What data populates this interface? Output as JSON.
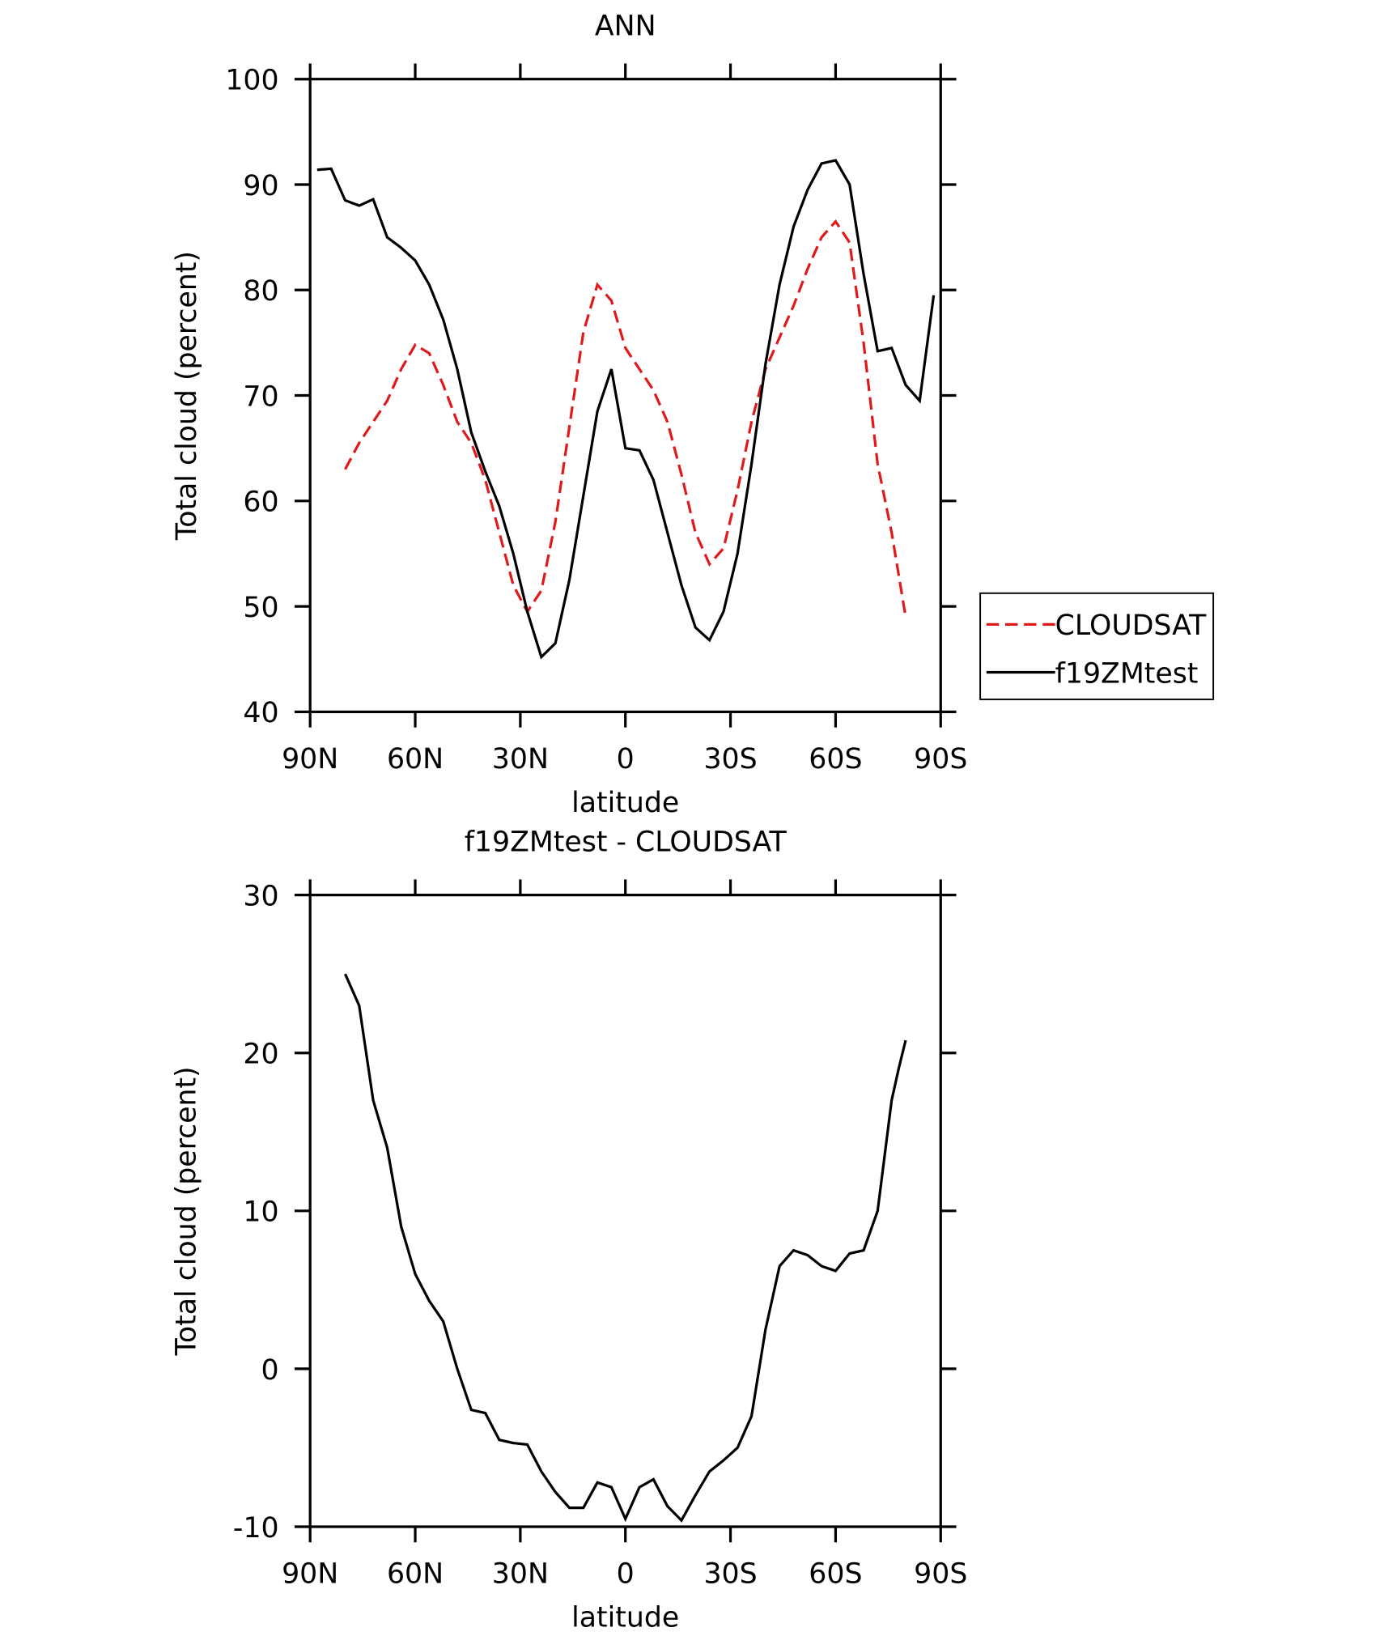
{
  "chart_data": [
    {
      "type": "line",
      "title": "ANN",
      "xlabel": "latitude",
      "ylabel": "Total cloud (percent)",
      "xlim": [
        90,
        -90
      ],
      "ylim": [
        40,
        100
      ],
      "xticks": [
        {
          "value": 90,
          "label": "90N"
        },
        {
          "value": 60,
          "label": "60N"
        },
        {
          "value": 30,
          "label": "30N"
        },
        0,
        {
          "value": -30,
          "label": "30S"
        },
        {
          "value": -60,
          "label": "60S"
        },
        {
          "value": -90,
          "label": "90S"
        }
      ],
      "yticks": [
        40,
        50,
        60,
        70,
        80,
        90,
        100
      ],
      "legend": "right",
      "series": [
        {
          "name": "CLOUDSAT",
          "color": "#e0191b",
          "line_style": "dashed",
          "x": [
            80,
            76,
            72,
            68,
            64,
            60,
            56,
            52,
            48,
            44,
            40,
            36,
            32,
            28,
            24,
            20,
            16,
            12,
            8,
            4,
            0,
            -4,
            -8,
            -12,
            -16,
            -20,
            -24,
            -28,
            -32,
            -36,
            -40,
            -44,
            -48,
            -52,
            -56,
            -60,
            -64,
            -68,
            -72,
            -76,
            -80
          ],
          "values": [
            63.0,
            65.5,
            67.5,
            69.5,
            72.5,
            74.8,
            74.0,
            71.0,
            67.5,
            65.5,
            62.0,
            57.0,
            52.0,
            49.5,
            51.5,
            58.0,
            67.0,
            76.0,
            80.5,
            79.0,
            74.5,
            72.5,
            70.5,
            67.5,
            62.5,
            57.0,
            54.0,
            55.5,
            61.0,
            67.5,
            72.5,
            75.5,
            78.5,
            82.0,
            85.0,
            86.5,
            84.5,
            75.0,
            63.5,
            57.0,
            49.0
          ]
        },
        {
          "name": "f19ZMtest",
          "color": "#000000",
          "line_style": "solid",
          "x": [
            88,
            84,
            80,
            76,
            72,
            68,
            64,
            60,
            56,
            52,
            48,
            44,
            40,
            36,
            32,
            28,
            24,
            20,
            16,
            12,
            8,
            4,
            0,
            -4,
            -8,
            -12,
            -16,
            -20,
            -24,
            -28,
            -32,
            -36,
            -40,
            -44,
            -48,
            -52,
            -56,
            -60,
            -64,
            -68,
            -72,
            -76,
            -80,
            -84,
            -88
          ],
          "values": [
            91.4,
            91.5,
            88.5,
            88.0,
            88.6,
            85.0,
            84.0,
            82.8,
            80.5,
            77.2,
            72.5,
            66.5,
            62.8,
            59.5,
            55.0,
            49.5,
            45.2,
            46.5,
            52.5,
            60.5,
            68.5,
            72.5,
            65.0,
            64.8,
            62.0,
            57.0,
            52.0,
            48.0,
            46.8,
            49.5,
            55.0,
            63.5,
            73.0,
            80.5,
            86.0,
            89.5,
            92.0,
            92.3,
            90.0,
            81.5,
            74.2,
            74.5,
            71.0,
            69.5,
            79.5
          ]
        }
      ]
    },
    {
      "type": "line",
      "title": "f19ZMtest - CLOUDSAT",
      "xlabel": "latitude",
      "ylabel": "Total cloud (percent)",
      "xlim": [
        90,
        -90
      ],
      "ylim": [
        -10,
        30
      ],
      "xticks": [
        {
          "value": 90,
          "label": "90N"
        },
        {
          "value": 60,
          "label": "60N"
        },
        {
          "value": 30,
          "label": "30N"
        },
        0,
        {
          "value": -30,
          "label": "30S"
        },
        {
          "value": -60,
          "label": "60S"
        },
        {
          "value": -90,
          "label": "90S"
        }
      ],
      "yticks": [
        -10,
        0,
        10,
        20,
        30
      ],
      "series": [
        {
          "color": "#000000",
          "line_style": "solid",
          "x": [
            80,
            76,
            72,
            68,
            64,
            60,
            56,
            52,
            48,
            44,
            40,
            36,
            32,
            28,
            24,
            20,
            16,
            12,
            8,
            4,
            0,
            -4,
            -8,
            -12,
            -16,
            -20,
            -24,
            -28,
            -32,
            -36,
            -40,
            -44,
            -48,
            -52,
            -56,
            -60,
            -64,
            -68,
            -72,
            -76,
            -78,
            -80
          ],
          "values": [
            25.0,
            23.0,
            17.0,
            14.0,
            9.0,
            6.0,
            4.3,
            3.0,
            0.0,
            -2.6,
            -2.8,
            -4.5,
            -4.7,
            -4.8,
            -6.5,
            -7.8,
            -8.8,
            -8.8,
            -7.2,
            -7.5,
            -9.5,
            -7.5,
            -7.0,
            -8.7,
            -9.6,
            -8.0,
            -6.5,
            -5.8,
            -5.0,
            -3.0,
            2.5,
            6.5,
            7.5,
            7.2,
            6.5,
            6.2,
            7.3,
            7.5,
            10.0,
            17.0,
            19.0,
            20.8
          ]
        }
      ]
    }
  ]
}
